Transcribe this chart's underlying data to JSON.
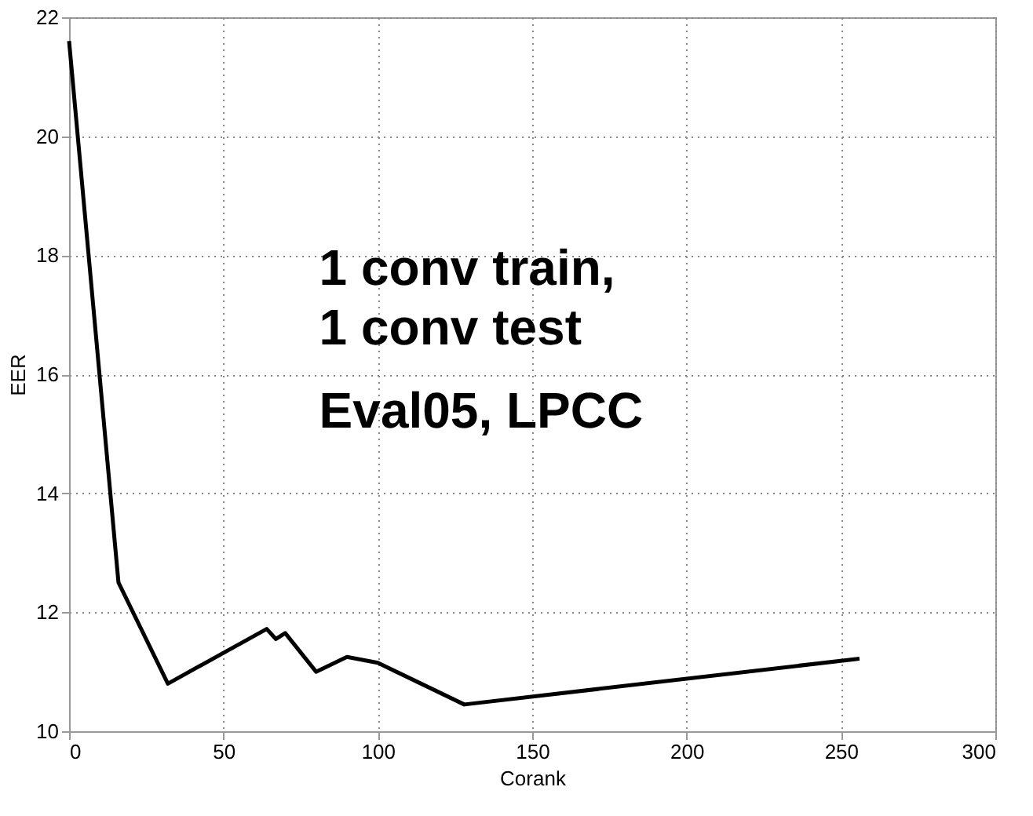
{
  "chart_data": {
    "type": "line",
    "xlabel": "Corank",
    "ylabel": "EER",
    "x": [
      0,
      16,
      32,
      64,
      67,
      70,
      80,
      90,
      100,
      128,
      256
    ],
    "series": [
      {
        "color": "#000000",
        "values": [
          21.6,
          12.5,
          10.8,
          11.72,
          11.55,
          11.65,
          11.0,
          11.25,
          11.15,
          10.45,
          11.22
        ]
      }
    ],
    "xlim": [
      0,
      300
    ],
    "xticks": [
      0,
      50,
      100,
      150,
      200,
      250,
      300
    ],
    "ylim": [
      10,
      22
    ],
    "yticks": [
      10,
      12,
      14,
      16,
      18,
      20,
      22
    ],
    "grid": true,
    "line_style": "solid",
    "marker": "none",
    "annotations": [
      "1 conv train,\n1 conv test",
      "Eval05, LPCC"
    ]
  }
}
